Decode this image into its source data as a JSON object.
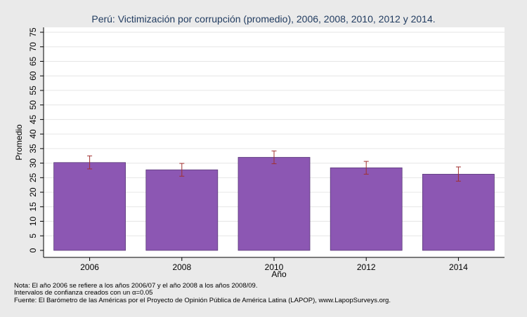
{
  "chart_data": {
    "type": "bar",
    "title": "Perú: Victimización por corrupción (promedio), 2006, 2008, 2010, 2012 y 2014.",
    "xlabel": "Año",
    "ylabel": "Promedio",
    "categories": [
      "2006",
      "2008",
      "2010",
      "2012",
      "2014"
    ],
    "values": [
      30.2,
      27.7,
      32.0,
      28.4,
      26.2
    ],
    "error_bars": {
      "lower": [
        28.0,
        25.5,
        29.8,
        26.2,
        23.8
      ],
      "upper": [
        32.5,
        29.9,
        34.2,
        30.6,
        28.7
      ]
    },
    "ylim": [
      0,
      75
    ],
    "yticks": [
      0,
      5,
      10,
      15,
      20,
      25,
      30,
      35,
      40,
      45,
      50,
      55,
      60,
      65,
      70,
      75
    ],
    "grid": true,
    "colors": {
      "bar": "#8c57b3",
      "bar_edge": "#5a3a78",
      "error": "#a03030",
      "grid": "#e6e6e6",
      "plot_bg": "#ffffff",
      "page_bg": "#eaeaea",
      "title": "#1f3a5f"
    }
  },
  "notes": {
    "line1": "Nota: El año 2006 se refiere a los años 2006/07 y el año 2008 a los años 2008/09.",
    "line2": "Intervalos de confianza creados con un α=0.05",
    "line3": "Fuente: El Barómetro de las Américas por el Proyecto de Opinión Pública de América Latina (LAPOP), www.LapopSurveys.org."
  }
}
